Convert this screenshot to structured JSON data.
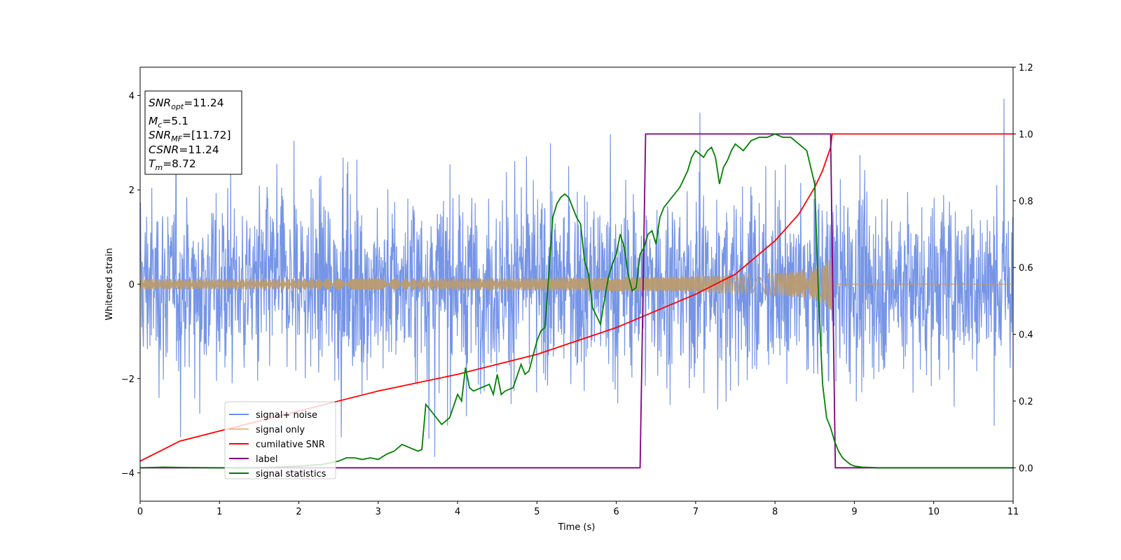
{
  "chart_data": {
    "type": "line",
    "title": "",
    "xlabel": "Time (s)",
    "ylabel_left": "Whitened strain",
    "ylabel_right": "",
    "xlim": [
      0,
      11
    ],
    "ylim_left": [
      -4.6,
      4.6
    ],
    "ylim_right": [
      -0.1,
      1.2
    ],
    "x_ticks": [
      0,
      1,
      2,
      3,
      4,
      5,
      6,
      7,
      8,
      9,
      10,
      11
    ],
    "y_left_ticks": [
      4,
      2,
      0,
      -2,
      -4
    ],
    "y_right_ticks": [
      "1.2",
      "1.0",
      "0.8",
      "0.6",
      "0.4",
      "0.2",
      "0.0"
    ],
    "grid": false,
    "legend_position": "lower left",
    "info_box": {
      "snr_opt": "=11.24",
      "mc": "=5.1",
      "snr_mf": "=[11.72]",
      "csnr": "=11.24",
      "tm": "=8.72"
    },
    "series": [
      {
        "name": "signal+ noise",
        "axis": "left",
        "color": "#6f8fe6",
        "noise_std": 0.95,
        "x_range": [
          0,
          11
        ]
      },
      {
        "name": "signal only",
        "axis": "left",
        "color": "#f5b97a",
        "chirp_end": 8.72,
        "amp_start": 0.07,
        "amp_end": 0.6
      },
      {
        "name": "cumilative SNR",
        "axis": "right",
        "color": "#ff0000",
        "x": [
          0,
          0.5,
          1,
          2,
          3,
          4,
          5,
          6,
          7,
          7.5,
          8,
          8.3,
          8.5,
          8.6,
          8.7,
          8.72,
          8.75,
          11
        ],
        "y": [
          0.02,
          0.08,
          0.11,
          0.17,
          0.23,
          0.28,
          0.34,
          0.42,
          0.52,
          0.58,
          0.68,
          0.76,
          0.84,
          0.89,
          0.96,
          1.0,
          1.0,
          1.0
        ]
      },
      {
        "name": "label",
        "axis": "right",
        "color": "#800080",
        "x": [
          0,
          6.3,
          6.37,
          8.7,
          8.76,
          11
        ],
        "y": [
          0,
          0,
          1,
          1,
          0,
          0
        ]
      },
      {
        "name": "signal statistics",
        "axis": "right",
        "color": "#008000",
        "x": [
          0,
          0.3,
          0.5,
          1,
          1.5,
          2,
          2.3,
          2.5,
          2.6,
          2.7,
          2.8,
          2.9,
          3.0,
          3.1,
          3.2,
          3.3,
          3.4,
          3.5,
          3.55,
          3.6,
          3.7,
          3.8,
          3.9,
          4.0,
          4.05,
          4.1,
          4.15,
          4.2,
          4.3,
          4.4,
          4.45,
          4.5,
          4.55,
          4.6,
          4.7,
          4.8,
          4.85,
          4.9,
          5.0,
          5.05,
          5.1,
          5.15,
          5.2,
          5.25,
          5.3,
          5.35,
          5.4,
          5.5,
          5.55,
          5.6,
          5.65,
          5.7,
          5.8,
          5.85,
          5.9,
          5.95,
          6.0,
          6.05,
          6.1,
          6.15,
          6.2,
          6.25,
          6.3,
          6.35,
          6.4,
          6.45,
          6.5,
          6.55,
          6.6,
          6.7,
          6.8,
          6.9,
          6.95,
          7.0,
          7.05,
          7.1,
          7.15,
          7.2,
          7.25,
          7.3,
          7.35,
          7.4,
          7.45,
          7.5,
          7.6,
          7.7,
          7.8,
          7.9,
          8.0,
          8.1,
          8.2,
          8.3,
          8.4,
          8.5,
          8.55,
          8.6,
          8.65,
          8.7,
          8.75,
          8.8,
          8.85,
          8.9,
          8.95,
          9.0,
          9.1,
          9.2,
          9.3,
          9.5,
          10,
          11
        ],
        "y": [
          0.0,
          0.002,
          0.001,
          0.0,
          0.0,
          0.005,
          0.01,
          0.02,
          0.03,
          0.03,
          0.025,
          0.03,
          0.025,
          0.04,
          0.05,
          0.07,
          0.06,
          0.05,
          0.055,
          0.19,
          0.16,
          0.13,
          0.15,
          0.22,
          0.2,
          0.3,
          0.24,
          0.23,
          0.24,
          0.25,
          0.22,
          0.28,
          0.22,
          0.23,
          0.24,
          0.31,
          0.28,
          0.29,
          0.38,
          0.41,
          0.42,
          0.58,
          0.75,
          0.79,
          0.81,
          0.82,
          0.81,
          0.75,
          0.73,
          0.62,
          0.58,
          0.48,
          0.43,
          0.5,
          0.57,
          0.61,
          0.64,
          0.7,
          0.66,
          0.58,
          0.53,
          0.54,
          0.64,
          0.66,
          0.7,
          0.71,
          0.67,
          0.75,
          0.78,
          0.81,
          0.84,
          0.89,
          0.93,
          0.95,
          0.94,
          0.93,
          0.95,
          0.96,
          0.93,
          0.85,
          0.9,
          0.92,
          0.95,
          0.97,
          0.95,
          0.98,
          0.99,
          0.99,
          1.0,
          0.99,
          0.99,
          0.97,
          0.95,
          0.85,
          0.5,
          0.25,
          0.15,
          0.12,
          0.08,
          0.05,
          0.03,
          0.02,
          0.01,
          0.005,
          0.002,
          0.001,
          0.0,
          0.0,
          0.0,
          0.0
        ]
      }
    ]
  }
}
